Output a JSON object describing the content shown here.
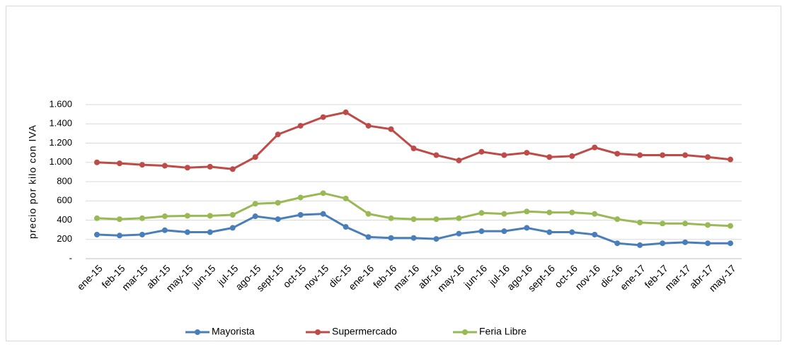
{
  "chart_data": {
    "type": "line",
    "y_label": "precio por kilo con IVA",
    "categories": [
      "ene-15",
      "feb-15",
      "mar-15",
      "abr-15",
      "may-15",
      "jun-15",
      "jul-15",
      "ago-15",
      "sept-15",
      "oct-15",
      "nov-15",
      "dic-15",
      "ene-16",
      "feb-16",
      "mar-16",
      "abr-16",
      "may-16",
      "jun-16",
      "jul-16",
      "ago-16",
      "sept-16",
      "oct-16",
      "nov-16",
      "dic-16",
      "ene-17",
      "feb-17",
      "mar-17",
      "abr-17",
      "may-17"
    ],
    "series": [
      {
        "name": "Mayorista",
        "color": "#4a7ebb",
        "values": [
          250,
          240,
          250,
          295,
          275,
          275,
          320,
          440,
          410,
          455,
          465,
          330,
          225,
          215,
          215,
          205,
          260,
          285,
          285,
          320,
          275,
          275,
          250,
          160,
          140,
          160,
          170,
          160,
          160
        ]
      },
      {
        "name": "Supermercado",
        "color": "#be4b48",
        "values": [
          1000,
          990,
          975,
          965,
          945,
          955,
          930,
          1055,
          1290,
          1380,
          1470,
          1520,
          1380,
          1345,
          1145,
          1075,
          1020,
          1110,
          1075,
          1100,
          1055,
          1065,
          1155,
          1090,
          1075,
          1075,
          1075,
          1055,
          1030
        ]
      },
      {
        "name": "Feria Libre",
        "color": "#98b954",
        "values": [
          420,
          410,
          420,
          440,
          445,
          445,
          455,
          570,
          580,
          635,
          680,
          625,
          465,
          420,
          410,
          410,
          420,
          475,
          465,
          490,
          480,
          480,
          465,
          410,
          375,
          365,
          365,
          350,
          340
        ]
      }
    ],
    "ylim": [
      0,
      1600
    ],
    "yticks": [
      {
        "value": 0,
        "label": "-"
      },
      200,
      400,
      600,
      800,
      {
        "value": 1000,
        "label": "1.000"
      },
      {
        "value": 1200,
        "label": "1.200"
      },
      {
        "value": 1400,
        "label": "1.400"
      },
      {
        "value": 1600,
        "label": "1.600"
      }
    ],
    "grid": true,
    "legend": "bottom"
  }
}
